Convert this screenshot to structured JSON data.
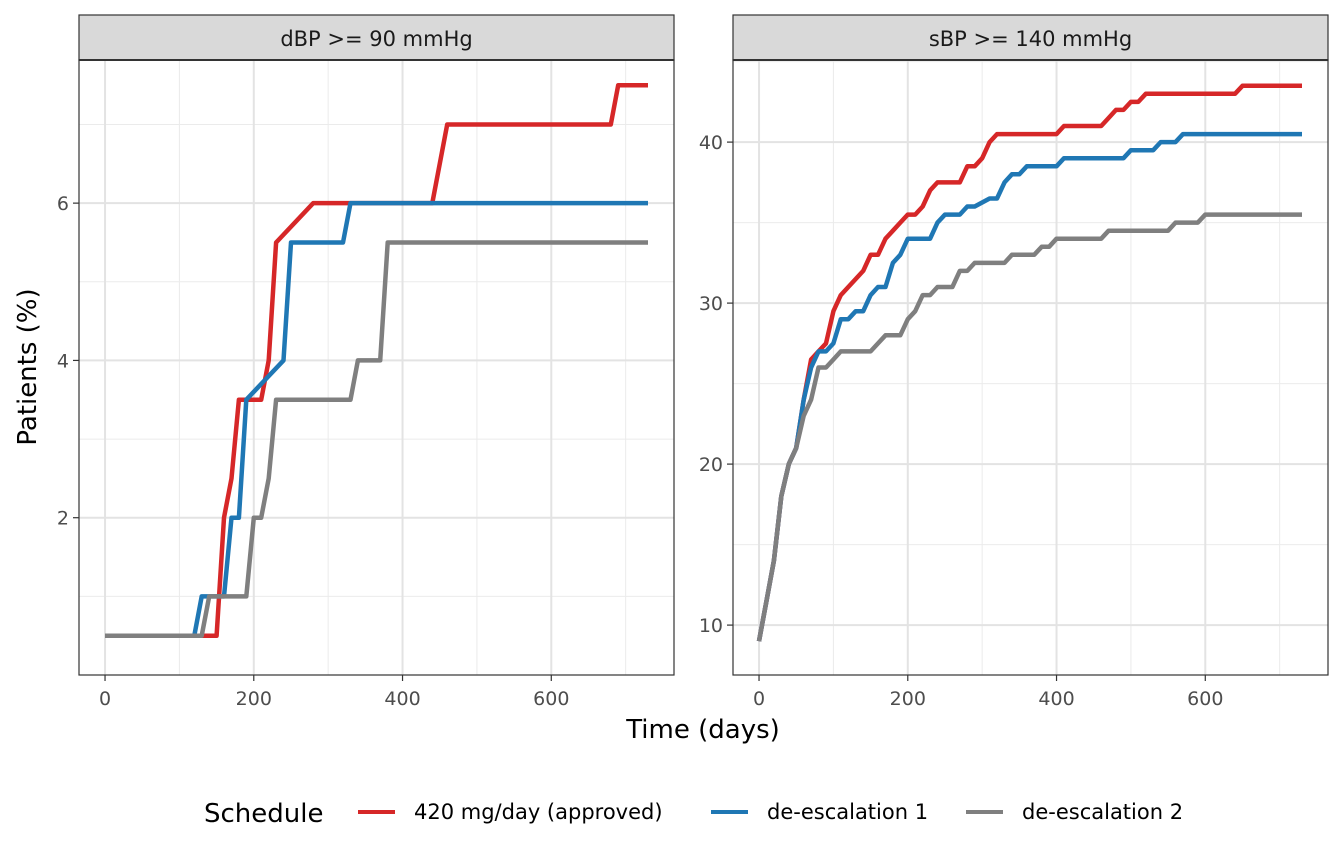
{
  "chart_data": {
    "type": "line",
    "step": true,
    "x_label": "Time (days)",
    "y_label": "Patients (%)",
    "legend": {
      "title": "Schedule",
      "position": "bottom",
      "entries": [
        {
          "label": "420 mg/day (approved)",
          "color": "#d62728"
        },
        {
          "label": "de-escalation 1",
          "color": "#1f77b4"
        },
        {
          "label": "de-escalation 2",
          "color": "#7f7f7f"
        }
      ]
    },
    "grid": true,
    "panels": [
      {
        "strip": "dBP >= 90 mmHg",
        "xlim": [
          -35,
          765
        ],
        "ylim": [
          0,
          7.82
        ],
        "x_ticks": [
          0,
          200,
          400,
          600
        ],
        "x_tick_labels": [
          "0",
          "200",
          "400",
          "600"
        ],
        "y_ticks": [
          2,
          4,
          6
        ],
        "y_tick_labels": [
          "2",
          "4",
          "6"
        ],
        "series": [
          {
            "name": "420 mg/day (approved)",
            "color": "#d62728",
            "x": [
              0,
              150,
              160,
              170,
              180,
              200,
              210,
              220,
              230,
              280,
              300,
              440,
              460,
              680,
              690,
              730
            ],
            "y": [
              0.5,
              0.5,
              2.0,
              2.5,
              3.5,
              3.5,
              3.5,
              4.0,
              5.5,
              6.0,
              6.0,
              6.0,
              7.0,
              7.0,
              7.5,
              7.5
            ]
          },
          {
            "name": "de-escalation 1",
            "color": "#1f77b4",
            "x": [
              0,
              120,
              130,
              160,
              170,
              180,
              190,
              240,
              250,
              320,
              330,
              730
            ],
            "y": [
              0.5,
              0.5,
              1.0,
              1.0,
              2.0,
              2.0,
              3.5,
              4.0,
              5.5,
              5.5,
              6.0,
              6.0
            ],
            "step": true
          },
          {
            "name": "de-escalation 2",
            "color": "#7f7f7f",
            "x": [
              0,
              130,
              140,
              190,
              200,
              210,
              220,
              230,
              330,
              340,
              370,
              380,
              730
            ],
            "y": [
              0.5,
              0.5,
              1.0,
              1.0,
              2.0,
              2.0,
              2.5,
              3.5,
              3.5,
              4.0,
              4.0,
              5.5,
              5.5
            ],
            "step": true
          }
        ]
      },
      {
        "strip": "sBP >= 140 mmHg",
        "xlim": [
          -35,
          765
        ],
        "ylim": [
          6.9,
          45.1
        ],
        "x_ticks": [
          0,
          200,
          400,
          600
        ],
        "x_tick_labels": [
          "0",
          "200",
          "400",
          "600"
        ],
        "y_ticks": [
          10,
          20,
          30,
          40
        ],
        "y_tick_labels": [
          "10",
          "20",
          "30",
          "40"
        ],
        "series": [
          {
            "name": "420 mg/day (approved)",
            "color": "#d62728",
            "x": [
              0,
              10,
              20,
              30,
              40,
              50,
              60,
              70,
              80,
              90,
              100,
              110,
              120,
              130,
              140,
              150,
              160,
              170,
              180,
              190,
              200,
              210,
              220,
              230,
              240,
              250,
              260,
              270,
              280,
              290,
              300,
              310,
              320,
              400,
              410,
              460,
              470,
              480,
              490,
              500,
              510,
              520,
              640,
              650,
              730
            ],
            "y": [
              9,
              11.5,
              14,
              18,
              20,
              21,
              24,
              26.5,
              27,
              27.5,
              29.5,
              30.5,
              31,
              31.5,
              32,
              33,
              33,
              34,
              34.5,
              35,
              35.5,
              35.5,
              36,
              37,
              37.5,
              37.5,
              37.5,
              37.5,
              38.5,
              38.5,
              39,
              40,
              40.5,
              40.5,
              41,
              41,
              41.5,
              42,
              42,
              42.5,
              42.5,
              43,
              43,
              43.5,
              43.5
            ]
          },
          {
            "name": "de-escalation 1",
            "color": "#1f77b4",
            "x": [
              0,
              10,
              20,
              30,
              40,
              50,
              60,
              70,
              80,
              90,
              100,
              110,
              120,
              130,
              140,
              150,
              160,
              170,
              180,
              190,
              200,
              230,
              240,
              250,
              270,
              280,
              290,
              310,
              320,
              330,
              340,
              350,
              360,
              400,
              410,
              490,
              500,
              530,
              540,
              560,
              570,
              730
            ],
            "y": [
              9,
              11.5,
              14,
              18,
              20,
              21,
              24,
              26,
              27,
              27,
              27.5,
              29,
              29,
              29.5,
              29.5,
              30.5,
              31,
              31,
              32.5,
              33,
              34,
              34,
              35,
              35.5,
              35.5,
              36,
              36,
              36.5,
              36.5,
              37.5,
              38,
              38,
              38.5,
              38.5,
              39,
              39,
              39.5,
              39.5,
              40,
              40,
              40.5,
              40.5
            ]
          },
          {
            "name": "de-escalation 2",
            "color": "#7f7f7f",
            "x": [
              0,
              10,
              20,
              30,
              40,
              50,
              60,
              70,
              80,
              90,
              100,
              110,
              150,
              160,
              170,
              190,
              200,
              210,
              220,
              230,
              240,
              260,
              270,
              280,
              290,
              330,
              340,
              370,
              380,
              390,
              400,
              410,
              460,
              470,
              550,
              560,
              590,
              600,
              730
            ],
            "y": [
              9,
              11.5,
              14,
              18,
              20,
              21,
              23,
              24,
              26,
              26,
              26.5,
              27,
              27,
              27.5,
              28,
              28,
              29,
              29.5,
              30.5,
              30.5,
              31,
              31,
              32,
              32,
              32.5,
              32.5,
              33,
              33,
              33.5,
              33.5,
              34,
              34,
              34,
              34.5,
              34.5,
              35,
              35,
              35.5,
              35.5
            ]
          }
        ]
      }
    ]
  }
}
